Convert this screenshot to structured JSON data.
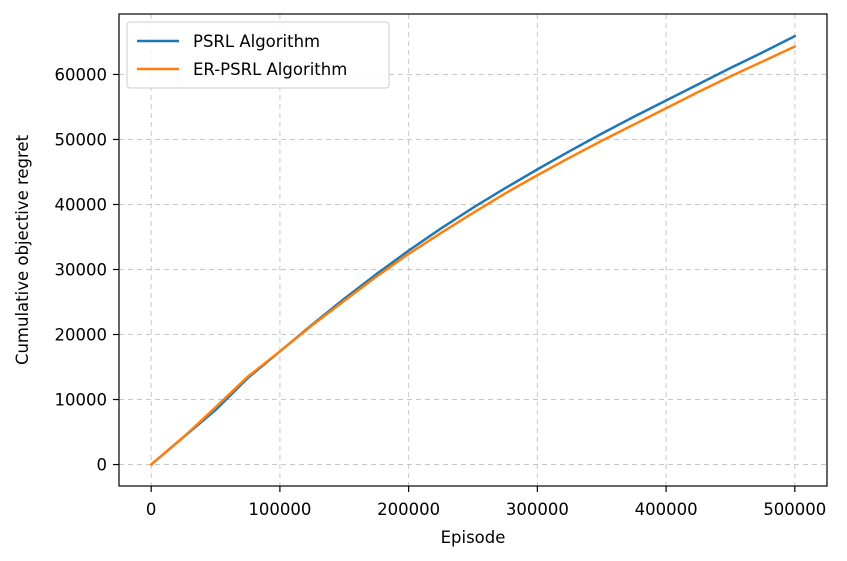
{
  "chart_data": {
    "type": "line",
    "xlabel": "Episode",
    "ylabel": "Cumulative objective regret",
    "xlim": [
      -25000,
      525000
    ],
    "ylim": [
      -3300,
      69300
    ],
    "xticks": [
      0,
      100000,
      200000,
      300000,
      400000,
      500000
    ],
    "yticks": [
      0,
      10000,
      20000,
      30000,
      40000,
      50000,
      60000
    ],
    "grid": true,
    "legend_position": "top-left",
    "series": [
      {
        "name": "PSRL Algorithm",
        "color": "#1f77b4",
        "x": [
          0,
          25000,
          50000,
          75000,
          100000,
          125000,
          150000,
          175000,
          200000,
          225000,
          250000,
          275000,
          300000,
          325000,
          350000,
          375000,
          400000,
          425000,
          450000,
          475000,
          500000
        ],
        "y": [
          0,
          4200,
          8400,
          13300,
          17400,
          21500,
          25500,
          29300,
          32900,
          36300,
          39500,
          42500,
          45400,
          48200,
          50900,
          53500,
          56000,
          58500,
          61000,
          63400,
          65900
        ]
      },
      {
        "name": "ER-PSRL Algorithm",
        "color": "#ff7f0e",
        "x": [
          0,
          25000,
          50000,
          75000,
          100000,
          125000,
          150000,
          175000,
          200000,
          225000,
          250000,
          275000,
          300000,
          325000,
          350000,
          375000,
          400000,
          425000,
          450000,
          475000,
          500000
        ],
        "y": [
          0,
          4200,
          8800,
          13500,
          17400,
          21400,
          25200,
          28900,
          32400,
          35600,
          38700,
          41700,
          44500,
          47200,
          49800,
          52300,
          54800,
          57300,
          59700,
          62000,
          64300
        ]
      }
    ]
  }
}
